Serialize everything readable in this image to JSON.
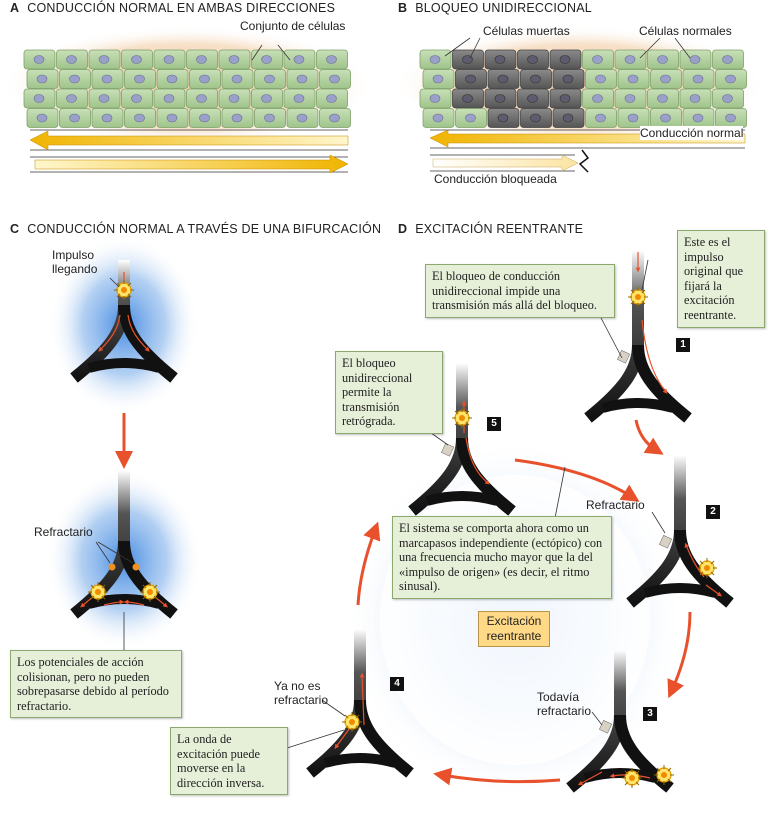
{
  "panel_a": {
    "letter": "A",
    "title": "CONDUCCIÓN NORMAL EN AMBAS DIRECCIONES",
    "cells_label": "Conjunto de células"
  },
  "panel_b": {
    "letter": "B",
    "title": "BLOQUEO UNIDIRECCIONAL",
    "dead_cells_label": "Células muertas",
    "normal_cells_label": "Células normales",
    "normal_conduction_label": "Conducción normal",
    "blocked_conduction_label": "Conducción bloqueada"
  },
  "panel_c": {
    "letter": "C",
    "title": "CONDUCCIÓN NORMAL A TRAVÉS DE UNA BIFURCACIÓN",
    "impulse_label": "Impulso\nllegando",
    "refractory_label": "Refractario",
    "note": "Los potenciales de acción colisionan, pero no pueden sobrepasarse debido al período refractario."
  },
  "panel_d": {
    "letter": "D",
    "title": "EXCITACIÓN REENTRANTE",
    "note_original": "Este es el impulso original que fijará la excitación reentrante.",
    "note_block": "El bloqueo de conducción unidireccional impide una transmisión más allá del bloqueo.",
    "note_retro": "El bloqueo unidireccional permite la transmisión retrógrada.",
    "note_system": "El sistema se comporta ahora como un marcapasos independiente (ectópico) con una frecuencia mucho mayor que la del «impulso de origen» (es decir, el ritmo sinusal).",
    "note_wave": "La onda de excitación puede moverse en la dirección inversa.",
    "refractory_label": "Refractario",
    "still_refractory_label": "Todavía\nrefractario",
    "no_longer_refractory_label": "Ya no es\nrefractario",
    "reentrant_label": "Excitación\nreentrante",
    "steps": [
      "1",
      "2",
      "3",
      "4",
      "5"
    ]
  }
}
